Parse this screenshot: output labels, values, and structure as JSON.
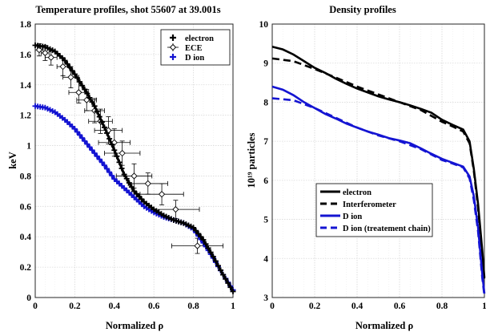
{
  "colors": {
    "electron": "#000000",
    "ion": "#1414d2",
    "grid": "#d9d9d9",
    "axis": "#262626"
  },
  "chart_data": [
    {
      "type": "scatter",
      "title": "Temperature profiles, shot 55607 at 39.001s",
      "xlabel": "Normalized ρ",
      "ylabel": "keV",
      "xlim": [
        0,
        1
      ],
      "ylim": [
        0,
        1.8
      ],
      "xticks": [
        0,
        0.2,
        0.4,
        0.6,
        0.8,
        1
      ],
      "yticks": [
        0,
        0.2,
        0.4,
        0.6,
        0.8,
        1,
        1.2,
        1.4,
        1.6,
        1.8
      ],
      "xtick_labels": [
        "0",
        "0.2",
        "0.4",
        "0.6",
        "0.8",
        "1"
      ],
      "ytick_labels": [
        "0",
        "0.2",
        "0.4",
        "0.6",
        "0.8",
        "1",
        "1.2",
        "1.4",
        "1.6",
        "1.8"
      ],
      "grid": true,
      "legend_position": "top-right",
      "series": [
        {
          "name": "electron",
          "color": "#000000",
          "style": "plus-markers",
          "x": [
            0,
            0.05,
            0.1,
            0.15,
            0.2,
            0.25,
            0.3,
            0.35,
            0.4,
            0.45,
            0.5,
            0.55,
            0.6,
            0.65,
            0.7,
            0.75,
            0.8,
            0.85,
            0.9,
            0.95,
            1
          ],
          "y": [
            1.66,
            1.65,
            1.62,
            1.56,
            1.47,
            1.37,
            1.26,
            1.12,
            0.97,
            0.81,
            0.7,
            0.63,
            0.58,
            0.54,
            0.51,
            0.49,
            0.46,
            0.38,
            0.27,
            0.15,
            0.04
          ]
        },
        {
          "name": "ECE",
          "color": "#000000",
          "style": "diamond-errorbars",
          "x": [
            0.02,
            0.05,
            0.08,
            0.14,
            0.18,
            0.22,
            0.26,
            0.3,
            0.33,
            0.37,
            0.4,
            0.44,
            0.5,
            0.57,
            0.64,
            0.71,
            0.82
          ],
          "y": [
            1.63,
            1.61,
            1.58,
            1.52,
            1.45,
            1.35,
            1.3,
            1.23,
            1.16,
            1.1,
            1.02,
            0.95,
            0.8,
            0.75,
            0.68,
            0.58,
            0.34
          ],
          "xerr": [
            0.02,
            0.02,
            0.03,
            0.03,
            0.04,
            0.05,
            0.05,
            0.05,
            0.06,
            0.07,
            0.08,
            0.09,
            0.09,
            0.1,
            0.11,
            0.12,
            0.13
          ],
          "yerr": [
            0.04,
            0.05,
            0.05,
            0.06,
            0.07,
            0.07,
            0.07,
            0.08,
            0.08,
            0.09,
            0.09,
            0.08,
            0.08,
            0.07,
            0.07,
            0.06,
            0.05
          ]
        },
        {
          "name": "D ion",
          "color": "#1414d2",
          "style": "plus-markers",
          "x": [
            0,
            0.05,
            0.1,
            0.15,
            0.2,
            0.25,
            0.3,
            0.35,
            0.4,
            0.45,
            0.5,
            0.55,
            0.6,
            0.65,
            0.7,
            0.75,
            0.8,
            0.85,
            0.9,
            0.95,
            1
          ],
          "y": [
            1.26,
            1.25,
            1.22,
            1.17,
            1.11,
            1.03,
            0.95,
            0.87,
            0.78,
            0.72,
            0.66,
            0.6,
            0.56,
            0.53,
            0.51,
            0.49,
            0.45,
            0.36,
            0.26,
            0.15,
            0.05
          ]
        }
      ]
    },
    {
      "type": "line",
      "title": "Density profiles",
      "xlabel": "Normalized ρ",
      "ylabel": "10¹⁹ particles",
      "xlim": [
        0,
        1
      ],
      "ylim": [
        3,
        10
      ],
      "xticks": [
        0,
        0.2,
        0.4,
        0.6,
        0.8,
        1
      ],
      "yticks": [
        3,
        4,
        5,
        6,
        7,
        8,
        9,
        10
      ],
      "xtick_labels": [
        "0",
        "0.2",
        "0.4",
        "0.6",
        "0.8",
        "1"
      ],
      "ytick_labels": [
        "3",
        "4",
        "5",
        "6",
        "7",
        "8",
        "9",
        "10"
      ],
      "grid": true,
      "legend_position": "bottom-left",
      "series": [
        {
          "name": "electron",
          "color": "#000000",
          "dash": "solid",
          "x": [
            0,
            0.05,
            0.1,
            0.15,
            0.2,
            0.25,
            0.3,
            0.35,
            0.4,
            0.45,
            0.5,
            0.55,
            0.6,
            0.65,
            0.7,
            0.75,
            0.8,
            0.85,
            0.9,
            0.93,
            0.95,
            0.97,
            0.99,
            1
          ],
          "y": [
            9.42,
            9.35,
            9.22,
            9.05,
            8.88,
            8.75,
            8.6,
            8.47,
            8.35,
            8.25,
            8.15,
            8.07,
            8.0,
            7.92,
            7.83,
            7.73,
            7.55,
            7.42,
            7.3,
            7.0,
            6.3,
            5.4,
            4.2,
            3.5
          ]
        },
        {
          "name": "Interferometer",
          "color": "#000000",
          "dash": "dashed",
          "x": [
            0,
            0.1,
            0.2,
            0.3,
            0.4,
            0.5,
            0.6,
            0.7,
            0.8,
            0.85,
            0.9,
            0.93,
            0.95,
            0.97,
            0.99,
            1
          ],
          "y": [
            9.12,
            9.05,
            8.85,
            8.63,
            8.4,
            8.2,
            8.0,
            7.8,
            7.5,
            7.38,
            7.25,
            6.95,
            6.25,
            5.3,
            4.1,
            3.4
          ]
        },
        {
          "name": "D ion",
          "color": "#1414d2",
          "dash": "solid",
          "x": [
            0,
            0.05,
            0.1,
            0.15,
            0.2,
            0.25,
            0.3,
            0.35,
            0.4,
            0.45,
            0.5,
            0.55,
            0.6,
            0.65,
            0.7,
            0.75,
            0.8,
            0.85,
            0.9,
            0.93,
            0.95,
            0.97,
            0.99,
            1
          ],
          "y": [
            8.4,
            8.32,
            8.18,
            8.0,
            7.85,
            7.7,
            7.58,
            7.45,
            7.35,
            7.25,
            7.17,
            7.08,
            7.02,
            6.95,
            6.82,
            6.68,
            6.55,
            6.45,
            6.35,
            6.1,
            5.6,
            4.8,
            3.6,
            3.1
          ]
        },
        {
          "name": "D ion (treatement chain)",
          "color": "#1414d2",
          "dash": "dashed",
          "x": [
            0,
            0.1,
            0.2,
            0.3,
            0.4,
            0.5,
            0.6,
            0.7,
            0.8,
            0.85,
            0.9,
            0.93,
            0.95,
            0.97,
            0.99,
            1
          ],
          "y": [
            8.1,
            8.05,
            7.85,
            7.6,
            7.35,
            7.15,
            7.0,
            6.8,
            6.52,
            6.43,
            6.33,
            6.05,
            5.5,
            4.7,
            3.5,
            3.05
          ]
        }
      ]
    }
  ]
}
